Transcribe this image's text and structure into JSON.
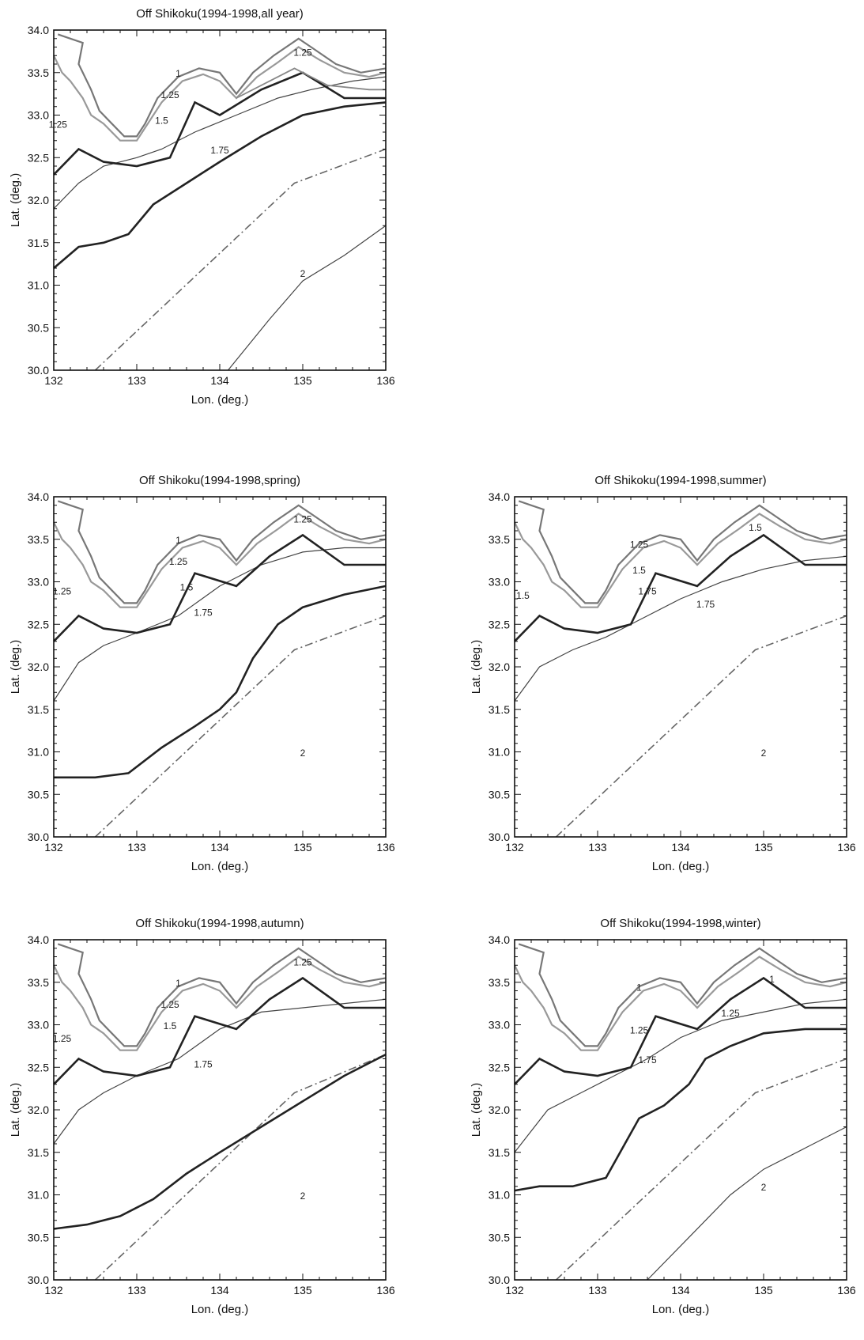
{
  "chart_data": [
    {
      "type": "line",
      "title": "Off Shikoku(1994-1998,all year)",
      "xlabel": "Lon. (deg.)",
      "ylabel": "Lat. (deg.)",
      "xlim": [
        132,
        136
      ],
      "ylim": [
        30.0,
        34.0
      ],
      "xticks": [
        "132",
        "133",
        "134",
        "135",
        "136"
      ],
      "yticks": [
        "30.0",
        "30.5",
        "31.0",
        "31.5",
        "32.0",
        "32.5",
        "33.0",
        "33.5",
        "34.0"
      ],
      "series": [
        {
          "style": "dashdot",
          "x": [
            132.5,
            134.9,
            136.0
          ],
          "y": [
            30.0,
            32.2,
            32.6
          ]
        },
        {
          "style": "thick",
          "x": [
            132.0,
            132.3,
            132.6,
            132.9,
            133.2,
            133.6,
            134.0,
            134.5,
            135.0,
            135.5,
            136.0
          ],
          "y": [
            31.2,
            31.45,
            31.5,
            31.6,
            31.95,
            32.2,
            32.45,
            32.75,
            33.0,
            33.1,
            33.15
          ]
        },
        {
          "style": "thin",
          "x": [
            132.0,
            132.3,
            132.6,
            133.0,
            133.3,
            133.7,
            134.2,
            134.7,
            135.1,
            135.6,
            136.0
          ],
          "y": [
            31.9,
            32.2,
            32.4,
            32.5,
            32.6,
            32.8,
            33.0,
            33.2,
            33.3,
            33.4,
            33.45
          ]
        },
        {
          "style": "thin",
          "x": [
            134.1,
            134.6,
            135.0,
            135.5,
            136.0
          ],
          "y": [
            30.0,
            30.6,
            31.05,
            31.35,
            31.7
          ]
        },
        {
          "style": "thick",
          "x": [
            132.0,
            132.3,
            132.6,
            133.0,
            133.4,
            133.7,
            134.0,
            134.5,
            135.0,
            135.5,
            136.0
          ],
          "y": [
            32.3,
            32.6,
            32.45,
            32.4,
            32.5,
            33.15,
            33.0,
            33.3,
            33.5,
            33.2,
            33.2
          ]
        },
        {
          "style": "gray",
          "x": [
            134.2,
            134.9,
            135.3,
            135.8,
            136.0
          ],
          "y": [
            33.2,
            33.55,
            33.35,
            33.3,
            33.3
          ]
        }
      ],
      "contour_labels": [
        "1.25",
        "1",
        "1.25",
        "1.5",
        "1.25",
        "1.75",
        "2"
      ]
    },
    {
      "type": "line",
      "title": "Off Shikoku(1994-1998,spring)",
      "xlabel": "Lon. (deg.)",
      "ylabel": "Lat. (deg.)",
      "xlim": [
        132,
        136
      ],
      "ylim": [
        30.0,
        34.0
      ],
      "xticks": [
        "132",
        "133",
        "134",
        "135",
        "136"
      ],
      "yticks": [
        "30.0",
        "30.5",
        "31.0",
        "31.5",
        "32.0",
        "32.5",
        "33.0",
        "33.5",
        "34.0"
      ],
      "series": [
        {
          "style": "dashdot",
          "x": [
            132.5,
            134.9,
            136.0
          ],
          "y": [
            30.0,
            32.2,
            32.6
          ]
        },
        {
          "style": "thick",
          "x": [
            132.0,
            132.2,
            132.5,
            132.9,
            133.3,
            133.7,
            134.0,
            134.2,
            134.4,
            134.7,
            135.0,
            135.5,
            136.0
          ],
          "y": [
            30.7,
            30.7,
            30.7,
            30.75,
            31.05,
            31.3,
            31.5,
            31.7,
            32.1,
            32.5,
            32.7,
            32.85,
            32.95
          ]
        },
        {
          "style": "thin",
          "x": [
            132.0,
            132.3,
            132.6,
            133.0,
            133.5,
            134.0,
            134.5,
            135.0,
            135.5,
            136.0
          ],
          "y": [
            31.6,
            32.05,
            32.25,
            32.4,
            32.6,
            32.95,
            33.2,
            33.35,
            33.4,
            33.4
          ]
        },
        {
          "style": "thick",
          "x": [
            132.0,
            132.3,
            132.6,
            133.0,
            133.4,
            133.7,
            134.2,
            134.6,
            135.0,
            135.5,
            136.0
          ],
          "y": [
            32.3,
            32.6,
            32.45,
            32.4,
            32.5,
            33.1,
            32.95,
            33.3,
            33.55,
            33.2,
            33.2
          ]
        }
      ],
      "contour_labels": [
        "1.25",
        "1",
        "1.25",
        "1.5",
        "1.25",
        "1.75",
        "2"
      ]
    },
    {
      "type": "line",
      "title": "Off Shikoku(1994-1998,summer)",
      "xlabel": "Lon. (deg.)",
      "ylabel": "Lat. (deg.)",
      "xlim": [
        132,
        136
      ],
      "ylim": [
        30.0,
        34.0
      ],
      "xticks": [
        "132",
        "133",
        "134",
        "135",
        "136"
      ],
      "yticks": [
        "30.0",
        "30.5",
        "31.0",
        "31.5",
        "32.0",
        "32.5",
        "33.0",
        "33.5",
        "34.0"
      ],
      "series": [
        {
          "style": "dashdot",
          "x": [
            132.5,
            134.9,
            136.0
          ],
          "y": [
            30.0,
            32.2,
            32.6
          ]
        },
        {
          "style": "thin",
          "x": [
            132.0,
            132.3,
            132.7,
            133.1,
            133.5,
            134.0,
            134.5,
            135.0,
            135.5,
            136.0
          ],
          "y": [
            31.6,
            32.0,
            32.2,
            32.35,
            32.55,
            32.8,
            33.0,
            33.15,
            33.25,
            33.3
          ]
        },
        {
          "style": "thick",
          "x": [
            132.0,
            132.3,
            132.6,
            133.0,
            133.4,
            133.7,
            134.2,
            134.6,
            135.0,
            135.5,
            136.0
          ],
          "y": [
            32.3,
            32.6,
            32.45,
            32.4,
            32.5,
            33.1,
            32.95,
            33.3,
            33.55,
            33.2,
            33.2
          ]
        }
      ],
      "contour_labels": [
        "1.5",
        "1.25",
        "1.5",
        "1.75",
        "1.5",
        "1.75",
        "2"
      ]
    },
    {
      "type": "line",
      "title": "Off Shikoku(1994-1998,autumn)",
      "xlabel": "Lon. (deg.)",
      "ylabel": "Lat. (deg.)",
      "xlim": [
        132,
        136
      ],
      "ylim": [
        30.0,
        34.0
      ],
      "xticks": [
        "132",
        "133",
        "134",
        "135",
        "136"
      ],
      "yticks": [
        "30.0",
        "30.5",
        "31.0",
        "31.5",
        "32.0",
        "32.5",
        "33.0",
        "33.5",
        "34.0"
      ],
      "series": [
        {
          "style": "dashdot",
          "x": [
            132.5,
            134.9,
            136.0
          ],
          "y": [
            30.0,
            32.2,
            32.65
          ]
        },
        {
          "style": "thick",
          "x": [
            132.0,
            132.4,
            132.8,
            133.2,
            133.6,
            134.0,
            134.5,
            135.0,
            135.5,
            136.0
          ],
          "y": [
            30.6,
            30.65,
            30.75,
            30.95,
            31.25,
            31.5,
            31.8,
            32.1,
            32.4,
            32.65
          ]
        },
        {
          "style": "thin",
          "x": [
            132.0,
            132.3,
            132.6,
            133.0,
            133.5,
            134.0,
            134.5,
            135.0,
            135.5,
            136.0
          ],
          "y": [
            31.6,
            32.0,
            32.2,
            32.4,
            32.6,
            32.95,
            33.15,
            33.2,
            33.25,
            33.3
          ]
        },
        {
          "style": "thick",
          "x": [
            132.0,
            132.3,
            132.6,
            133.0,
            133.4,
            133.7,
            134.2,
            134.6,
            135.0,
            135.5,
            136.0
          ],
          "y": [
            32.3,
            32.6,
            32.45,
            32.4,
            32.5,
            33.1,
            32.95,
            33.3,
            33.55,
            33.2,
            33.2
          ]
        }
      ],
      "contour_labels": [
        "1.25",
        "1",
        "1.25",
        "1.5",
        "1.25",
        "1.75",
        "2"
      ]
    },
    {
      "type": "line",
      "title": "Off Shikoku(1994-1998,winter)",
      "xlabel": "Lon. (deg.)",
      "ylabel": "Lat. (deg.)",
      "xlim": [
        132,
        136
      ],
      "ylim": [
        30.0,
        34.0
      ],
      "xticks": [
        "132",
        "133",
        "134",
        "135",
        "136"
      ],
      "yticks": [
        "30.0",
        "30.5",
        "31.0",
        "31.5",
        "32.0",
        "32.5",
        "33.0",
        "33.5",
        "34.0"
      ],
      "series": [
        {
          "style": "dashdot",
          "x": [
            132.5,
            134.9,
            136.0
          ],
          "y": [
            30.0,
            32.2,
            32.6
          ]
        },
        {
          "style": "thick",
          "x": [
            132.0,
            132.3,
            132.7,
            133.1,
            133.3,
            133.5,
            133.8,
            134.1,
            134.3,
            134.6,
            135.0,
            135.5,
            136.0
          ],
          "y": [
            31.05,
            31.1,
            31.1,
            31.2,
            31.55,
            31.9,
            32.05,
            32.3,
            32.6,
            32.75,
            32.9,
            32.95,
            32.95
          ]
        },
        {
          "style": "thin",
          "x": [
            132.0,
            132.4,
            132.8,
            133.2,
            133.6,
            134.0,
            134.5,
            135.0,
            135.5,
            136.0
          ],
          "y": [
            31.5,
            32.0,
            32.2,
            32.4,
            32.6,
            32.85,
            33.05,
            33.15,
            33.25,
            33.3
          ]
        },
        {
          "style": "thin",
          "x": [
            133.6,
            134.1,
            134.6,
            135.0,
            135.5,
            136.0
          ],
          "y": [
            30.0,
            30.5,
            31.0,
            31.3,
            31.55,
            31.8
          ]
        },
        {
          "style": "thick",
          "x": [
            132.0,
            132.3,
            132.6,
            133.0,
            133.4,
            133.7,
            134.2,
            134.6,
            135.0,
            135.5,
            136.0
          ],
          "y": [
            32.3,
            32.6,
            32.45,
            32.4,
            32.5,
            33.1,
            32.95,
            33.3,
            33.55,
            33.2,
            33.2
          ]
        }
      ],
      "contour_labels": [
        "1",
        "1.25",
        "1",
        "1.25",
        "1.75",
        "2"
      ]
    }
  ]
}
